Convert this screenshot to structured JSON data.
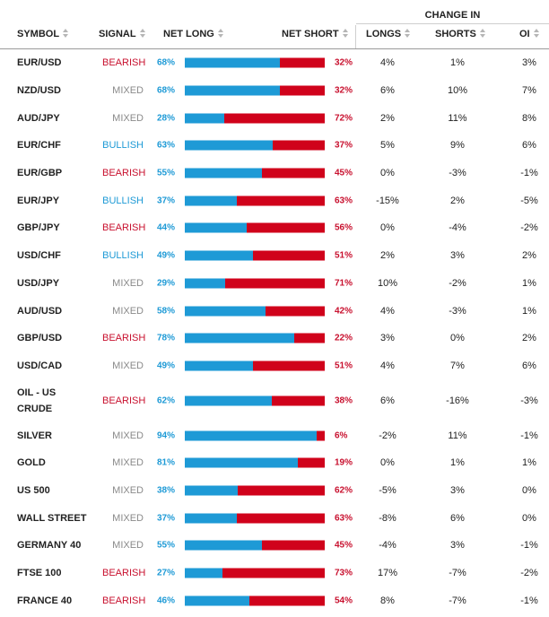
{
  "header": {
    "change_in": "CHANGE IN",
    "symbol": "SYMBOL",
    "signal": "SIGNAL",
    "net_long": "NET LONG",
    "net_short": "NET SHORT",
    "longs": "LONGS",
    "shorts": "SHORTS",
    "oi": "OI"
  },
  "colors": {
    "long_blue": "#1e9ad6",
    "short_red": "#d0021b",
    "bearish": "#c8102e",
    "bullish": "#1e9ad6",
    "mixed": "#8a8a8a"
  },
  "rows": [
    {
      "symbol": "EUR/USD",
      "signal": "BEARISH",
      "net_long": "68%",
      "net_short": "32%",
      "long_frac": 0.68,
      "longs": "4%",
      "shorts": "1%",
      "oi": "3%"
    },
    {
      "symbol": "NZD/USD",
      "signal": "MIXED",
      "net_long": "68%",
      "net_short": "32%",
      "long_frac": 0.68,
      "longs": "6%",
      "shorts": "10%",
      "oi": "7%"
    },
    {
      "symbol": "AUD/JPY",
      "signal": "MIXED",
      "net_long": "28%",
      "net_short": "72%",
      "long_frac": 0.28,
      "longs": "2%",
      "shorts": "11%",
      "oi": "8%"
    },
    {
      "symbol": "EUR/CHF",
      "signal": "BULLISH",
      "net_long": "63%",
      "net_short": "37%",
      "long_frac": 0.63,
      "longs": "5%",
      "shorts": "9%",
      "oi": "6%"
    },
    {
      "symbol": "EUR/GBP",
      "signal": "BEARISH",
      "net_long": "55%",
      "net_short": "45%",
      "long_frac": 0.55,
      "longs": "0%",
      "shorts": "-3%",
      "oi": "-1%"
    },
    {
      "symbol": "EUR/JPY",
      "signal": "BULLISH",
      "net_long": "37%",
      "net_short": "63%",
      "long_frac": 0.37,
      "longs": "-15%",
      "shorts": "2%",
      "oi": "-5%"
    },
    {
      "symbol": "GBP/JPY",
      "signal": "BEARISH",
      "net_long": "44%",
      "net_short": "56%",
      "long_frac": 0.44,
      "longs": "0%",
      "shorts": "-4%",
      "oi": "-2%"
    },
    {
      "symbol": "USD/CHF",
      "signal": "BULLISH",
      "net_long": "49%",
      "net_short": "51%",
      "long_frac": 0.49,
      "longs": "2%",
      "shorts": "3%",
      "oi": "2%"
    },
    {
      "symbol": "USD/JPY",
      "signal": "MIXED",
      "net_long": "29%",
      "net_short": "71%",
      "long_frac": 0.29,
      "longs": "10%",
      "shorts": "-2%",
      "oi": "1%"
    },
    {
      "symbol": "AUD/USD",
      "signal": "MIXED",
      "net_long": "58%",
      "net_short": "42%",
      "long_frac": 0.58,
      "longs": "4%",
      "shorts": "-3%",
      "oi": "1%"
    },
    {
      "symbol": "GBP/USD",
      "signal": "BEARISH",
      "net_long": "78%",
      "net_short": "22%",
      "long_frac": 0.78,
      "longs": "3%",
      "shorts": "0%",
      "oi": "2%"
    },
    {
      "symbol": "USD/CAD",
      "signal": "MIXED",
      "net_long": "49%",
      "net_short": "51%",
      "long_frac": 0.49,
      "longs": "4%",
      "shorts": "7%",
      "oi": "6%"
    },
    {
      "symbol": "OIL - US CRUDE",
      "signal": "BEARISH",
      "net_long": "62%",
      "net_short": "38%",
      "long_frac": 0.62,
      "longs": "6%",
      "shorts": "-16%",
      "oi": "-3%"
    },
    {
      "symbol": "SILVER",
      "signal": "MIXED",
      "net_long": "94%",
      "net_short": "6%",
      "long_frac": 0.94,
      "longs": "-2%",
      "shorts": "11%",
      "oi": "-1%"
    },
    {
      "symbol": "GOLD",
      "signal": "MIXED",
      "net_long": "81%",
      "net_short": "19%",
      "long_frac": 0.81,
      "longs": "0%",
      "shorts": "1%",
      "oi": "1%"
    },
    {
      "symbol": "US 500",
      "signal": "MIXED",
      "net_long": "38%",
      "net_short": "62%",
      "long_frac": 0.38,
      "longs": "-5%",
      "shorts": "3%",
      "oi": "0%"
    },
    {
      "symbol": "WALL STREET",
      "signal": "MIXED",
      "net_long": "37%",
      "net_short": "63%",
      "long_frac": 0.37,
      "longs": "-8%",
      "shorts": "6%",
      "oi": "0%"
    },
    {
      "symbol": "GERMANY 40",
      "signal": "MIXED",
      "net_long": "55%",
      "net_short": "45%",
      "long_frac": 0.55,
      "longs": "-4%",
      "shorts": "3%",
      "oi": "-1%"
    },
    {
      "symbol": "FTSE 100",
      "signal": "BEARISH",
      "net_long": "27%",
      "net_short": "73%",
      "long_frac": 0.27,
      "longs": "17%",
      "shorts": "-7%",
      "oi": "-2%"
    },
    {
      "symbol": "FRANCE 40",
      "signal": "BEARISH",
      "net_long": "46%",
      "net_short": "54%",
      "long_frac": 0.46,
      "longs": "8%",
      "shorts": "-7%",
      "oi": "-1%"
    }
  ]
}
